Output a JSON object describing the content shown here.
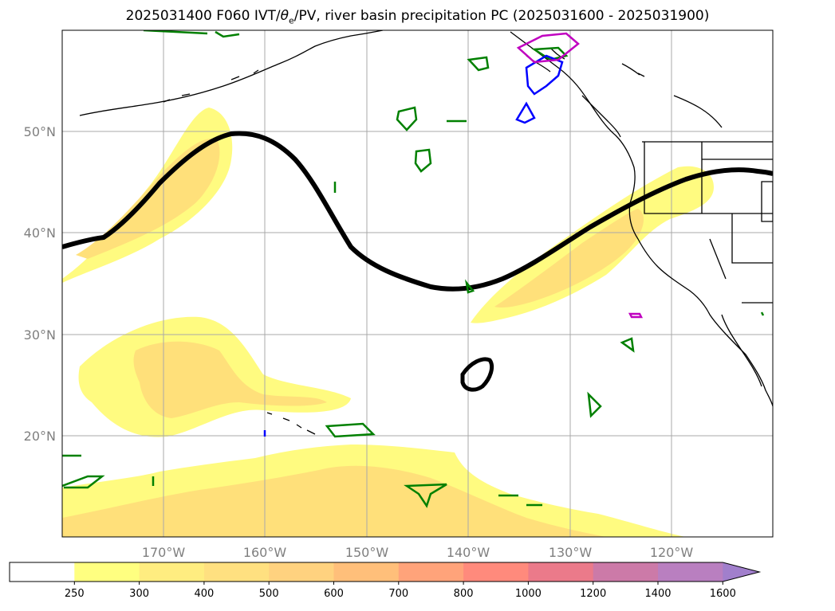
{
  "figure": {
    "title_prefix": "2025031400 F060 IVT/",
    "title_theta": "θ",
    "title_sub": "e",
    "title_suffix": "/PV, river basin precipitation PC (2025031600 - 2025031900)"
  },
  "map": {
    "lon_labels": [
      "170°W",
      "160°W",
      "150°W",
      "140°W",
      "130°W",
      "120°W"
    ],
    "lat_labels": [
      "50°N",
      "40°N",
      "30°N",
      "20°N"
    ],
    "gridlines": true,
    "ivt_fill_colors": [
      "#fffb80",
      "#ffe07a"
    ],
    "contour_colors": {
      "dynamic_tropopause": "#000000",
      "green": "#008000",
      "blue": "#0000ff",
      "magenta": "#c000c0"
    }
  },
  "colorbar": {
    "labels": [
      "250",
      "300",
      "400",
      "500",
      "600",
      "700",
      "800",
      "1000",
      "1200",
      "1400",
      "1600"
    ],
    "colors": [
      "#ffffff",
      "#ffff80",
      "#ffed80",
      "#ffe080",
      "#ffd27f",
      "#ffbf7a",
      "#ffa37a",
      "#ff8a7c",
      "#eb7a8a",
      "#cc7aa8",
      "#b97fc0",
      "#a17fcc"
    ]
  }
}
